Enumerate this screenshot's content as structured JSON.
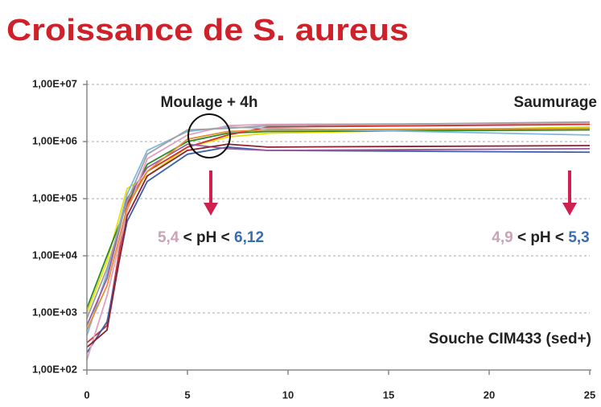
{
  "chart_data": {
    "type": "line",
    "title": "Croissance de S. aureus",
    "x": [
      0,
      1,
      2,
      3,
      5,
      7,
      9,
      25
    ],
    "xlim": [
      0,
      25
    ],
    "xticks": [
      0,
      5,
      10,
      15,
      20,
      25
    ],
    "ylim": [
      100,
      10000000
    ],
    "log_y": true,
    "grid": true,
    "yticks": [
      {
        "value": 100,
        "label": "1,00E+02"
      },
      {
        "value": 1000,
        "label": "1,00E+03"
      },
      {
        "value": 10000,
        "label": "1,00E+04"
      },
      {
        "value": 100000,
        "label": "1,00E+05"
      },
      {
        "value": 1000000,
        "label": "1,00E+06"
      },
      {
        "value": 10000000,
        "label": "1,00E+07"
      }
    ],
    "series": [
      {
        "color": "#e8e000",
        "values": [
          1000,
          8000,
          150000,
          250000,
          800000,
          1200000,
          1400000,
          1800000
        ]
      },
      {
        "color": "#2a8a2a",
        "values": [
          1200,
          10000,
          80000,
          400000,
          1000000,
          1400000,
          1500000,
          1600000
        ]
      },
      {
        "color": "#d03030",
        "values": [
          300,
          600,
          80000,
          300000,
          800000,
          1300000,
          1800000,
          2000000
        ]
      },
      {
        "color": "#3b5fa8",
        "values": [
          200,
          700,
          40000,
          200000,
          600000,
          800000,
          700000,
          650000
        ]
      },
      {
        "color": "#7fb8e0",
        "values": [
          400,
          5000,
          120000,
          700000,
          1500000,
          1800000,
          1700000,
          1300000
        ]
      },
      {
        "color": "#9a5aa0",
        "values": [
          600,
          4000,
          100000,
          350000,
          900000,
          750000,
          700000,
          750000
        ]
      },
      {
        "color": "#e0a0c0",
        "values": [
          150,
          2000,
          60000,
          500000,
          1300000,
          1900000,
          2000000,
          2100000
        ]
      },
      {
        "color": "#a0a0a0",
        "values": [
          800,
          6000,
          90000,
          600000,
          1600000,
          1700000,
          1900000,
          2200000
        ]
      },
      {
        "color": "#e09030",
        "values": [
          500,
          3000,
          70000,
          300000,
          1100000,
          1500000,
          1600000,
          1700000
        ]
      },
      {
        "color": "#902030",
        "values": [
          250,
          500,
          50000,
          250000,
          700000,
          900000,
          800000,
          850000
        ]
      }
    ],
    "annotations": [
      "Moulage + 4h",
      "Saumurage",
      "Souche CIM433 (sed+)"
    ],
    "ph_ranges": [
      {
        "low": "5,4",
        "mid": "< pH <",
        "high": "6,12"
      },
      {
        "low": "4,9",
        "mid": "< pH <",
        "high": "5,3"
      }
    ]
  }
}
